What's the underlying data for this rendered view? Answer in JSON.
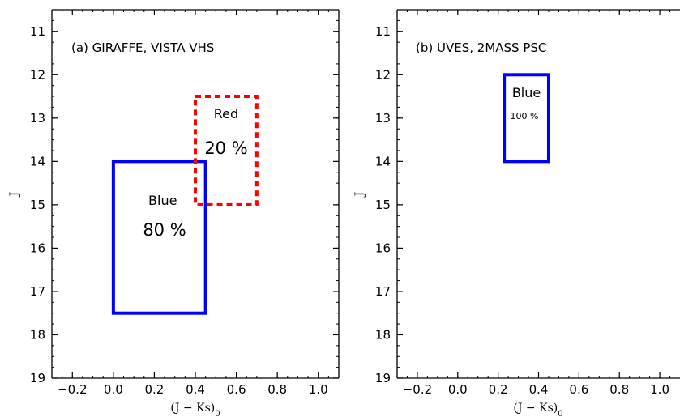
{
  "chart_data": [
    {
      "type": "rectangle-regions",
      "title": "(b) UVES, 2MASS PSC",
      "xlabel": "(J − Ks)",
      "xlabel_sub": "0",
      "ylabel": "J",
      "xlim": [
        -0.3,
        1.1
      ],
      "ylim": [
        19,
        10.5
      ],
      "y_inverted": true,
      "xticks": [
        -0.2,
        0.0,
        0.2,
        0.4,
        0.6,
        0.8,
        1.0
      ],
      "xtick_labels": [
        "−0.2",
        "0.0",
        "0.2",
        "0.4",
        "0.6",
        "0.8",
        "1.0"
      ],
      "yticks": [
        11,
        12,
        13,
        14,
        15,
        16,
        17,
        18,
        19
      ],
      "ytick_labels": [
        "11",
        "12",
        "13",
        "14",
        "15",
        "16",
        "17",
        "18",
        "19"
      ],
      "grid": false,
      "regions": [
        {
          "name": "Blue",
          "percent": "100 %",
          "x0": 0.23,
          "x1": 0.45,
          "y0": 12.0,
          "y1": 14.0,
          "color": "#0000ff",
          "style": "solid"
        }
      ]
    },
    {
      "type": "rectangle-regions",
      "title": "(a) GIRAFFE, VISTA VHS",
      "xlabel": "(J − Ks)",
      "xlabel_sub": "0",
      "ylabel": "J",
      "xlim": [
        -0.3,
        1.1
      ],
      "ylim": [
        19,
        10.5
      ],
      "y_inverted": true,
      "xticks": [
        -0.2,
        0.0,
        0.2,
        0.4,
        0.6,
        0.8,
        1.0
      ],
      "xtick_labels": [
        "−0.2",
        "0.0",
        "0.2",
        "0.4",
        "0.6",
        "0.8",
        "1.0"
      ],
      "yticks": [
        11,
        12,
        13,
        14,
        15,
        16,
        17,
        18,
        19
      ],
      "ytick_labels": [
        "11",
        "12",
        "13",
        "14",
        "15",
        "16",
        "17",
        "18",
        "19"
      ],
      "grid": false,
      "regions": [
        {
          "name": "Blue",
          "percent": "80 %",
          "x0": 0.0,
          "x1": 0.45,
          "y0": 14.0,
          "y1": 17.5,
          "color": "#0000ff",
          "style": "solid"
        },
        {
          "name": "Red",
          "percent": "20 %",
          "x0": 0.4,
          "x1": 0.7,
          "y0": 12.5,
          "y1": 15.0,
          "color": "#ff0000",
          "style": "dashed"
        }
      ]
    }
  ]
}
